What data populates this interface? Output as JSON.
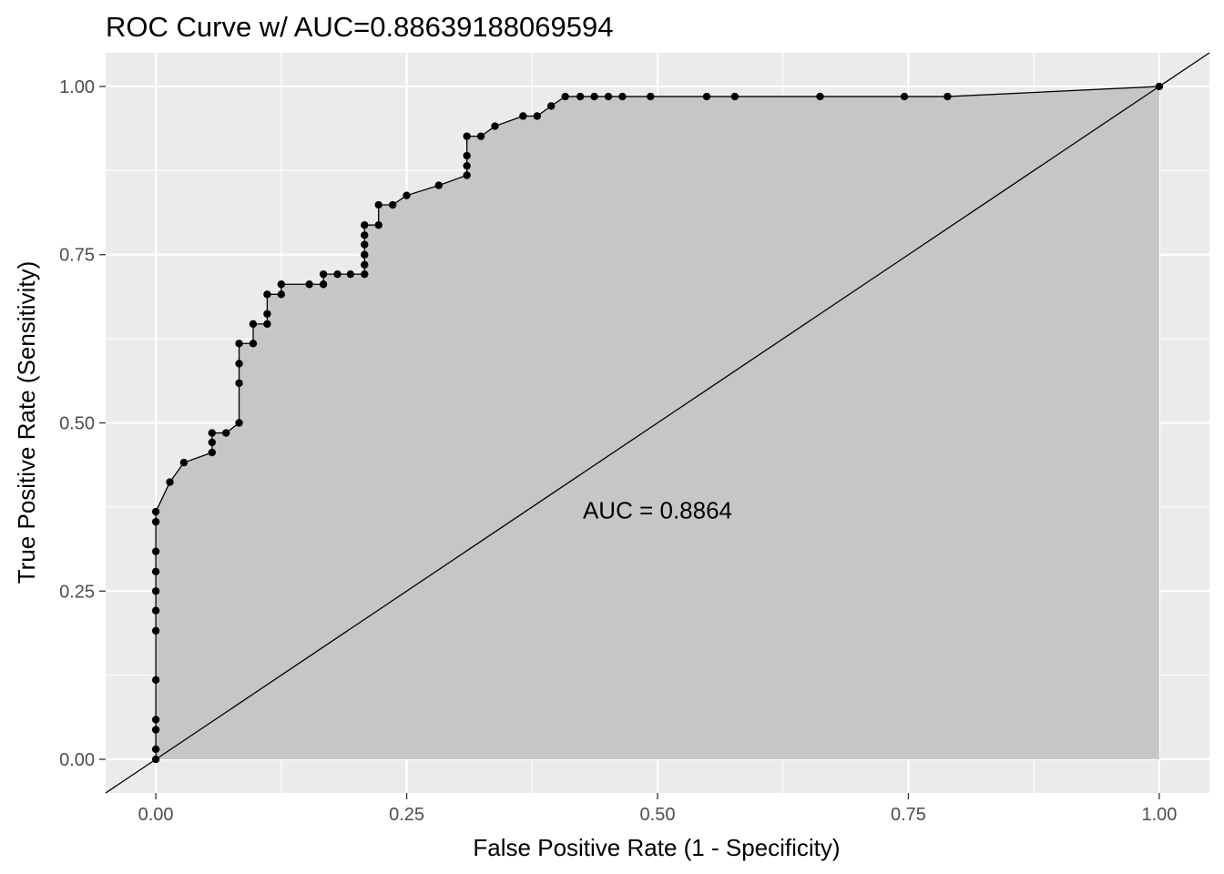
{
  "chart_data": {
    "type": "line",
    "title": "ROC Curve w/ AUC=0.88639188069594",
    "xlabel": "False Positive Rate (1 - Specificity)",
    "ylabel": "True Positive Rate (Sensitivity)",
    "xlim": [
      -0.05,
      1.05
    ],
    "ylim": [
      -0.05,
      1.05
    ],
    "x_ticks": [
      "0.00",
      "0.25",
      "0.50",
      "0.75",
      "1.00"
    ],
    "y_ticks": [
      "0.00",
      "0.25",
      "0.50",
      "0.75",
      "1.00"
    ],
    "grid": true,
    "legend": "none",
    "annotation": {
      "text": "AUC =  0.8864",
      "x": 0.5,
      "y": 0.37
    },
    "reference_line": {
      "x": [
        -0.05,
        1.05
      ],
      "y": [
        -0.05,
        1.05
      ]
    },
    "series": [
      {
        "x": [
          0.0,
          0.0,
          0.0,
          0.0,
          0.0,
          0.0,
          0.0,
          0.0,
          0.0,
          0.0,
          0.0,
          0.0,
          0.014,
          0.028,
          0.056,
          0.056,
          0.056,
          0.07,
          0.083,
          0.083,
          0.083,
          0.083,
          0.097,
          0.097,
          0.111,
          0.111,
          0.111,
          0.125,
          0.125,
          0.153,
          0.167,
          0.167,
          0.181,
          0.194,
          0.208,
          0.208,
          0.208,
          0.208,
          0.208,
          0.208,
          0.222,
          0.222,
          0.236,
          0.25,
          0.282,
          0.31,
          0.31,
          0.31,
          0.31,
          0.324,
          0.338,
          0.366,
          0.38,
          0.394,
          0.408,
          0.423,
          0.437,
          0.451,
          0.465,
          0.493,
          0.549,
          0.577,
          0.662,
          0.746,
          0.789,
          1.0
        ],
        "y": [
          0.0,
          0.015,
          0.044,
          0.059,
          0.118,
          0.191,
          0.221,
          0.25,
          0.279,
          0.309,
          0.353,
          0.368,
          0.412,
          0.441,
          0.456,
          0.471,
          0.485,
          0.485,
          0.5,
          0.559,
          0.588,
          0.618,
          0.618,
          0.647,
          0.647,
          0.662,
          0.691,
          0.691,
          0.706,
          0.706,
          0.706,
          0.721,
          0.721,
          0.721,
          0.721,
          0.735,
          0.75,
          0.765,
          0.779,
          0.794,
          0.794,
          0.824,
          0.824,
          0.838,
          0.853,
          0.868,
          0.882,
          0.897,
          0.926,
          0.926,
          0.941,
          0.956,
          0.956,
          0.971,
          0.985,
          0.985,
          0.985,
          0.985,
          0.985,
          0.985,
          0.985,
          0.985,
          0.985,
          0.985,
          0.985,
          1.0
        ]
      }
    ]
  }
}
